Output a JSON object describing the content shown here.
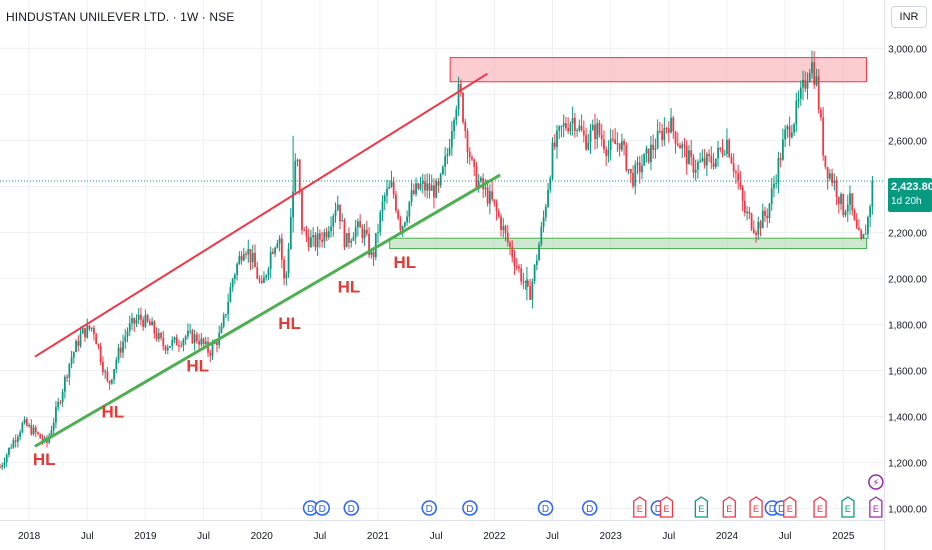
{
  "header": {
    "title": "HINDUSTAN UNILEVER LTD. · 1W · NSE",
    "currency": "INR"
  },
  "price_tag": {
    "price": "2,423.80",
    "countdown": "1d 20h",
    "color": "#089981"
  },
  "colors": {
    "up": "#089981",
    "down": "#f23645",
    "resistance_zone": "#f7a4a9",
    "support_zone": "#a5d6a7",
    "channel_top": "#f23645",
    "channel_bottom": "#4caf50",
    "dividend_marker": "#2962ff",
    "earnings_down": "#f23645",
    "earnings_up": "#089981",
    "event_marker": "#9c27b0"
  },
  "chart_data": {
    "type": "candlestick",
    "interval": "1W",
    "ylim": [
      950,
      3080
    ],
    "y_ticks": [
      "3,000.00",
      "2,800.00",
      "2,600.00",
      "2,400.00",
      "2,200.00",
      "2,000.00",
      "1,800.00",
      "1,600.00",
      "1,400.00",
      "1,200.00",
      "1,000.00"
    ],
    "x_ticks": [
      "2018",
      "Jul",
      "2019",
      "Jul",
      "2020",
      "Jul",
      "2021",
      "Jul",
      "2022",
      "Jul",
      "2023",
      "Jul",
      "2024",
      "Jul",
      "2025"
    ],
    "x_tick_values": [
      2018.0,
      2018.5,
      2019.0,
      2019.5,
      2020.0,
      2020.5,
      2021.0,
      2021.5,
      2022.0,
      2022.5,
      2023.0,
      2023.5,
      2024.0,
      2024.5,
      2025.0
    ],
    "xlim": [
      2017.75,
      2025.35
    ],
    "price_path": [
      [
        2017.75,
        1180
      ],
      [
        2017.85,
        1280
      ],
      [
        2017.95,
        1370
      ],
      [
        2018.05,
        1330
      ],
      [
        2018.15,
        1280
      ],
      [
        2018.25,
        1450
      ],
      [
        2018.35,
        1640
      ],
      [
        2018.45,
        1760
      ],
      [
        2018.55,
        1790
      ],
      [
        2018.62,
        1650
      ],
      [
        2018.68,
        1530
      ],
      [
        2018.75,
        1650
      ],
      [
        2018.85,
        1780
      ],
      [
        2018.95,
        1830
      ],
      [
        2019.05,
        1790
      ],
      [
        2019.15,
        1710
      ],
      [
        2019.25,
        1720
      ],
      [
        2019.35,
        1750
      ],
      [
        2019.45,
        1740
      ],
      [
        2019.55,
        1680
      ],
      [
        2019.65,
        1760
      ],
      [
        2019.75,
        2000
      ],
      [
        2019.85,
        2150
      ],
      [
        2019.92,
        2080
      ],
      [
        2020.0,
        1950
      ],
      [
        2020.08,
        2120
      ],
      [
        2020.15,
        2200
      ],
      [
        2020.2,
        1950
      ],
      [
        2020.25,
        2270
      ],
      [
        2020.3,
        2550
      ],
      [
        2020.35,
        2200
      ],
      [
        2020.45,
        2150
      ],
      [
        2020.55,
        2200
      ],
      [
        2020.65,
        2340
      ],
      [
        2020.72,
        2150
      ],
      [
        2020.8,
        2220
      ],
      [
        2020.88,
        2200
      ],
      [
        2020.95,
        2080
      ],
      [
        2021.05,
        2350
      ],
      [
        2021.12,
        2400
      ],
      [
        2021.2,
        2220
      ],
      [
        2021.28,
        2350
      ],
      [
        2021.36,
        2400
      ],
      [
        2021.44,
        2390
      ],
      [
        2021.52,
        2380
      ],
      [
        2021.6,
        2550
      ],
      [
        2021.65,
        2730
      ],
      [
        2021.7,
        2820
      ],
      [
        2021.75,
        2650
      ],
      [
        2021.82,
        2450
      ],
      [
        2021.9,
        2390
      ],
      [
        2021.98,
        2330
      ],
      [
        2022.05,
        2250
      ],
      [
        2022.12,
        2150
      ],
      [
        2022.2,
        2050
      ],
      [
        2022.3,
        1920
      ],
      [
        2022.35,
        2050
      ],
      [
        2022.42,
        2250
      ],
      [
        2022.5,
        2550
      ],
      [
        2022.58,
        2650
      ],
      [
        2022.68,
        2700
      ],
      [
        2022.78,
        2600
      ],
      [
        2022.88,
        2650
      ],
      [
        2022.98,
        2560
      ],
      [
        2023.08,
        2600
      ],
      [
        2023.18,
        2430
      ],
      [
        2023.3,
        2520
      ],
      [
        2023.4,
        2600
      ],
      [
        2023.5,
        2680
      ],
      [
        2023.6,
        2580
      ],
      [
        2023.7,
        2490
      ],
      [
        2023.8,
        2500
      ],
      [
        2023.9,
        2520
      ],
      [
        2024.0,
        2600
      ],
      [
        2024.08,
        2450
      ],
      [
        2024.15,
        2290
      ],
      [
        2024.25,
        2220
      ],
      [
        2024.35,
        2290
      ],
      [
        2024.42,
        2450
      ],
      [
        2024.5,
        2620
      ],
      [
        2024.58,
        2700
      ],
      [
        2024.66,
        2830
      ],
      [
        2024.72,
        2950
      ],
      [
        2024.77,
        2850
      ],
      [
        2024.84,
        2500
      ],
      [
        2024.92,
        2420
      ],
      [
        2025.0,
        2300
      ],
      [
        2025.05,
        2350
      ],
      [
        2025.1,
        2220
      ],
      [
        2025.16,
        2140
      ],
      [
        2025.22,
        2280
      ],
      [
        2025.25,
        2424
      ]
    ],
    "last_price": 2423.8
  },
  "drawings": {
    "resistance_zone": {
      "x": [
        2021.62,
        2025.2
      ],
      "y": [
        2855,
        2960
      ]
    },
    "support_zone": {
      "x": [
        2021.1,
        2025.2
      ],
      "y": [
        2130,
        2175
      ]
    },
    "channel_top": {
      "from": [
        2018.05,
        1660
      ],
      "to": [
        2021.94,
        2890
      ]
    },
    "channel_bottom": {
      "from": [
        2018.05,
        1270
      ],
      "to": [
        2022.05,
        2450
      ]
    },
    "labels": [
      {
        "text": "HL",
        "x": 2018.13,
        "y": 1190
      },
      {
        "text": "HL",
        "x": 2018.72,
        "y": 1395
      },
      {
        "text": "HL",
        "x": 2019.45,
        "y": 1595
      },
      {
        "text": "HL",
        "x": 2020.24,
        "y": 1780
      },
      {
        "text": "HL",
        "x": 2020.75,
        "y": 1940
      },
      {
        "text": "HL",
        "x": 2021.23,
        "y": 2045
      }
    ]
  },
  "events": [
    {
      "x": 2020.42,
      "type": "dividend",
      "label": "D"
    },
    {
      "x": 2020.52,
      "type": "dividend",
      "label": "D"
    },
    {
      "x": 2020.77,
      "type": "dividend",
      "label": "D"
    },
    {
      "x": 2021.44,
      "type": "dividend",
      "label": "D"
    },
    {
      "x": 2021.79,
      "type": "dividend",
      "label": "D"
    },
    {
      "x": 2022.44,
      "type": "dividend",
      "label": "D"
    },
    {
      "x": 2022.82,
      "type": "dividend",
      "label": "D"
    },
    {
      "x": 2023.25,
      "type": "earnings_down",
      "label": "E"
    },
    {
      "x": 2023.41,
      "type": "dividend",
      "label": "D"
    },
    {
      "x": 2023.48,
      "type": "earnings_down",
      "label": "E"
    },
    {
      "x": 2023.78,
      "type": "earnings_up",
      "label": "E"
    },
    {
      "x": 2024.02,
      "type": "earnings_down",
      "label": "E"
    },
    {
      "x": 2024.25,
      "type": "earnings_down",
      "label": "E"
    },
    {
      "x": 2024.39,
      "type": "dividend",
      "label": "D"
    },
    {
      "x": 2024.47,
      "type": "dividend",
      "label": "D"
    },
    {
      "x": 2024.54,
      "type": "earnings_down",
      "label": "E"
    },
    {
      "x": 2024.8,
      "type": "earnings_down",
      "label": "E"
    },
    {
      "x": 2025.04,
      "type": "earnings_up",
      "label": "E"
    },
    {
      "x": 2025.28,
      "type": "event_lightning",
      "label": "⚡"
    },
    {
      "x": 2025.28,
      "type": "event_purple",
      "label": "E"
    }
  ]
}
